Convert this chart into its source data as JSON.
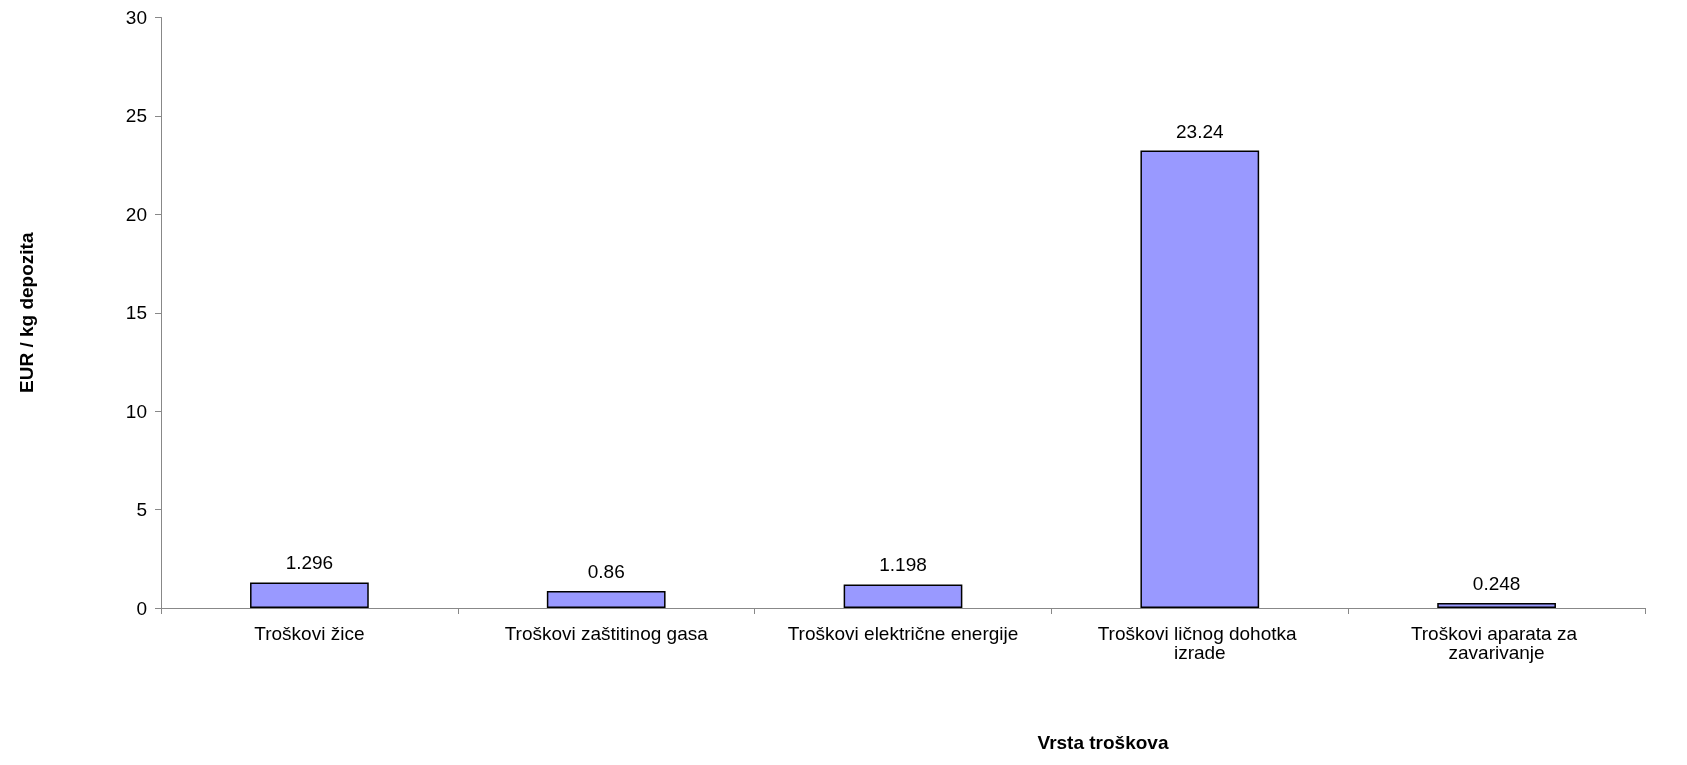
{
  "chart_data": {
    "type": "bar",
    "xlabel": "Vrsta troškova",
    "ylabel": "EUR / kg depozita",
    "categories": [
      "Troškovi žice",
      "Troškovi zaštitinog gasa",
      "Troškovi električne energije",
      "Troškovi ličnog dohotka izrade",
      "Troškovi aparata za zavarivanje"
    ],
    "values": [
      1.296,
      0.86,
      1.198,
      23.24,
      0.248
    ],
    "color": "#9999ff",
    "ylim": [
      0,
      30
    ],
    "yticks": [
      0,
      5,
      10,
      15,
      20,
      25,
      30
    ],
    "grid": false,
    "data_labels": true
  }
}
